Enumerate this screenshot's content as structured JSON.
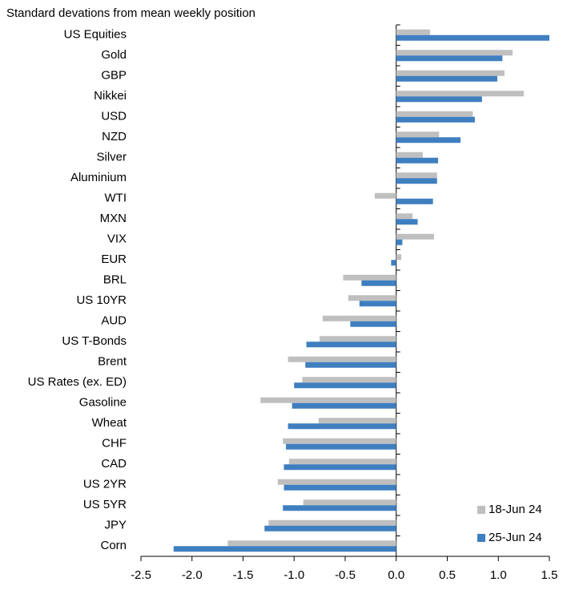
{
  "chart_data": {
    "type": "bar",
    "orientation": "horizontal",
    "title": "Standard devations from mean weekly position",
    "categories": [
      "US Equities",
      "Gold",
      "GBP",
      "Nikkei",
      "USD",
      "NZD",
      "Silver",
      "Aluminium",
      "WTI",
      "MXN",
      "VIX",
      "EUR",
      "BRL",
      "US 10YR",
      "AUD",
      "US T-Bonds",
      "Brent",
      "US Rates (ex. ED)",
      "Gasoline",
      "Wheat",
      "CHF",
      "CAD",
      "US 2YR",
      "US 5YR",
      "JPY",
      "Corn"
    ],
    "series": [
      {
        "name": "18-Jun 24",
        "color": "#bfbfbf",
        "values": [
          0.33,
          1.14,
          1.06,
          1.25,
          0.75,
          0.42,
          0.26,
          0.4,
          -0.21,
          0.16,
          0.37,
          0.05,
          -0.52,
          -0.47,
          -0.72,
          -0.75,
          -1.06,
          -0.92,
          -1.33,
          -0.76,
          -1.11,
          -1.05,
          -1.16,
          -0.91,
          -1.25,
          -1.65
        ]
      },
      {
        "name": "25-Jun 24",
        "color": "#3f7fc0",
        "values": [
          1.5,
          1.04,
          0.99,
          0.84,
          0.77,
          0.63,
          0.41,
          0.4,
          0.36,
          0.21,
          0.06,
          -0.05,
          -0.34,
          -0.36,
          -0.45,
          -0.88,
          -0.89,
          -1.0,
          -1.02,
          -1.06,
          -1.08,
          -1.1,
          -1.1,
          -1.11,
          -1.29,
          -2.18
        ]
      }
    ],
    "xlim": [
      -2.5,
      1.5
    ],
    "xticks": [
      -2.5,
      {
        "value": -2,
        "label": "-2.0"
      },
      -1.5,
      {
        "value": -1,
        "label": "-1.0"
      },
      -0.5,
      {
        "value": 0,
        "label": "0.0"
      },
      0.5,
      {
        "value": 1,
        "label": "1.0"
      },
      1.5
    ],
    "legend": "lower right"
  }
}
